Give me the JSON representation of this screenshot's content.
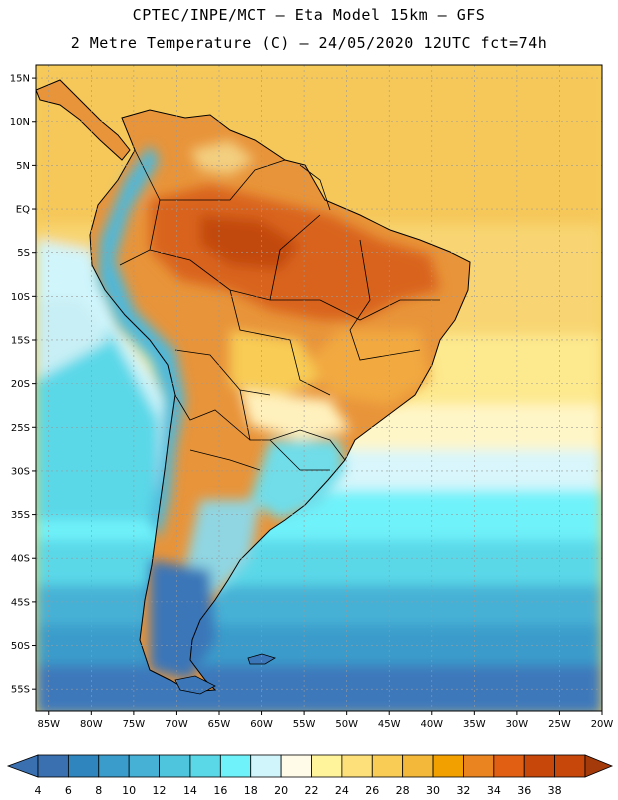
{
  "title_line1": "CPTEC/INPE/MCT  –   Eta Model 15km  –  GFS",
  "title_line2": "2 Metre Temperature (C) – 24/05/2020 12UTC fct=74h",
  "map": {
    "lat_labels": [
      "15N",
      "10N",
      "5N",
      "EQ",
      "5S",
      "10S",
      "15S",
      "20S",
      "25S",
      "30S",
      "35S",
      "40S",
      "45S",
      "50S",
      "55S"
    ],
    "lon_labels": [
      "85W",
      "80W",
      "75W",
      "70W",
      "65W",
      "60W",
      "55W",
      "50W",
      "45W",
      "40W",
      "35W",
      "30W",
      "25W",
      "20W"
    ],
    "lat_range": [
      -57.5,
      16.5
    ],
    "lon_range": [
      -86.5,
      -20
    ]
  },
  "colorbar": {
    "labels": [
      "4",
      "6",
      "8",
      "10",
      "12",
      "14",
      "16",
      "18",
      "20",
      "22",
      "24",
      "26",
      "28",
      "30",
      "32",
      "34",
      "36",
      "38"
    ],
    "colors": [
      "#3a6fb0",
      "#2f86bf",
      "#3a9ccb",
      "#47b1d5",
      "#4fc5dd",
      "#5ad8e8",
      "#6ff2fa",
      "#d0f5fb",
      "#fffbe8",
      "#fff49c",
      "#fde07a",
      "#f8cc55",
      "#f3b73a",
      "#f2a000",
      "#ea8420",
      "#e05f12",
      "#c7460a",
      "#a43a0a"
    ]
  }
}
